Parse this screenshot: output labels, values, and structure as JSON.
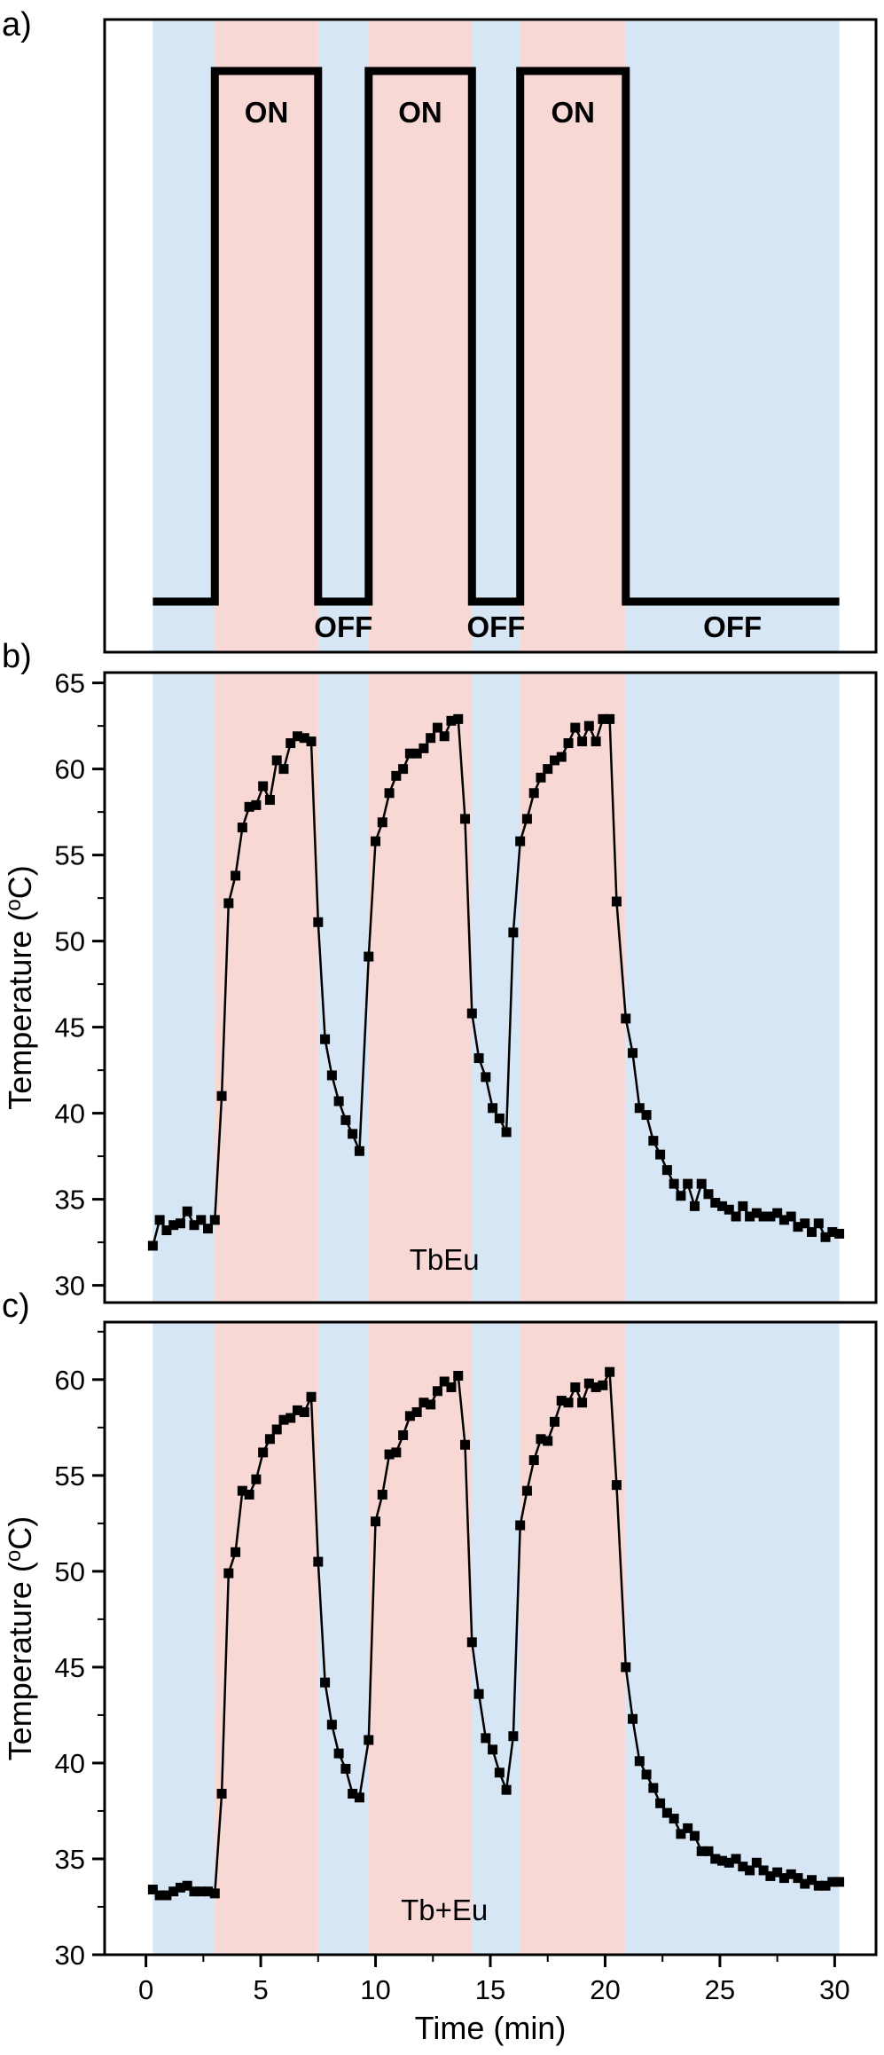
{
  "panels": [
    {
      "letter": "a)"
    },
    {
      "letter": "b)"
    },
    {
      "letter": "c)"
    }
  ],
  "colors": {
    "off_band": "#d6e6f4",
    "on_band": "#f8d8d5",
    "line": "#000000",
    "frame": "#000000"
  },
  "bands": [
    {
      "state": "off",
      "x0": 0.3,
      "x1": 3.0
    },
    {
      "state": "on",
      "x0": 3.0,
      "x1": 7.5
    },
    {
      "state": "off",
      "x0": 7.5,
      "x1": 9.7
    },
    {
      "state": "on",
      "x0": 9.7,
      "x1": 14.2
    },
    {
      "state": "off",
      "x0": 14.2,
      "x1": 16.3
    },
    {
      "state": "on",
      "x0": 16.3,
      "x1": 20.9
    },
    {
      "state": "off",
      "x0": 20.9,
      "x1": 30.2
    }
  ],
  "signal": {
    "path_x": [
      0.3,
      3.0,
      3.0,
      7.5,
      7.5,
      9.7,
      9.7,
      14.2,
      14.2,
      16.3,
      16.3,
      20.9,
      20.9,
      30.2
    ],
    "path_state": [
      0,
      0,
      1,
      1,
      0,
      0,
      1,
      1,
      0,
      0,
      1,
      1,
      0,
      0
    ],
    "labels": [
      {
        "text": "ON",
        "x": 5.25,
        "level": "on"
      },
      {
        "text": "ON",
        "x": 11.95,
        "level": "on"
      },
      {
        "text": "ON",
        "x": 18.6,
        "level": "on"
      },
      {
        "text": "OFF",
        "x": 8.6,
        "level": "off"
      },
      {
        "text": "OFF",
        "x": 15.25,
        "level": "off"
      },
      {
        "text": "OFF",
        "x": 25.55,
        "level": "off"
      }
    ]
  },
  "chart_data": [
    {
      "type": "line",
      "panel": "b)",
      "xlim": [
        -1.8,
        31.8
      ],
      "ylim": [
        29,
        65.6
      ],
      "yticks": [
        30,
        35,
        40,
        45,
        50,
        55,
        60,
        65
      ],
      "ylabel": "Temperature (°C)",
      "ylabel_parts": {
        "before": "Temperature (",
        "sup": "o",
        "after": "C)"
      },
      "annotation": "TbEu",
      "marker": "square",
      "x": [
        0.3,
        0.6,
        0.9,
        1.2,
        1.5,
        1.8,
        2.1,
        2.4,
        2.7,
        3.0,
        3.3,
        3.6,
        3.9,
        4.2,
        4.5,
        4.8,
        5.1,
        5.4,
        5.7,
        6.0,
        6.3,
        6.6,
        6.9,
        7.2,
        7.5,
        7.8,
        8.1,
        8.4,
        8.7,
        9.0,
        9.3,
        9.7,
        10.0,
        10.3,
        10.6,
        10.9,
        11.2,
        11.5,
        11.8,
        12.1,
        12.4,
        12.7,
        13.0,
        13.3,
        13.6,
        13.9,
        14.2,
        14.5,
        14.8,
        15.1,
        15.4,
        15.7,
        16.0,
        16.3,
        16.6,
        16.9,
        17.2,
        17.5,
        17.8,
        18.1,
        18.4,
        18.7,
        19.0,
        19.3,
        19.6,
        19.9,
        20.2,
        20.5,
        20.9,
        21.2,
        21.5,
        21.8,
        22.1,
        22.4,
        22.7,
        23.0,
        23.3,
        23.6,
        23.9,
        24.2,
        24.5,
        24.8,
        25.1,
        25.4,
        25.7,
        26.0,
        26.3,
        26.6,
        26.9,
        27.2,
        27.5,
        27.8,
        28.1,
        28.4,
        28.7,
        29.0,
        29.3,
        29.6,
        29.9,
        30.2
      ],
      "y": [
        32.3,
        33.8,
        33.2,
        33.5,
        33.6,
        34.3,
        33.5,
        33.8,
        33.3,
        33.8,
        41.0,
        52.2,
        53.8,
        56.6,
        57.8,
        57.9,
        59.0,
        58.2,
        60.5,
        60.0,
        61.5,
        61.9,
        61.8,
        61.6,
        51.1,
        44.3,
        42.2,
        40.7,
        39.6,
        38.8,
        37.8,
        49.1,
        55.8,
        56.9,
        58.6,
        59.6,
        60.0,
        60.9,
        60.9,
        61.2,
        61.8,
        62.4,
        61.9,
        62.8,
        62.9,
        57.1,
        45.8,
        43.2,
        42.1,
        40.3,
        39.7,
        38.9,
        50.5,
        55.8,
        57.1,
        58.6,
        59.5,
        60.0,
        60.5,
        60.7,
        61.5,
        62.4,
        61.6,
        62.5,
        61.6,
        62.9,
        62.9,
        52.3,
        45.5,
        43.5,
        40.3,
        39.9,
        38.4,
        37.6,
        36.7,
        35.9,
        35.2,
        35.9,
        34.6,
        35.9,
        35.3,
        34.8,
        34.6,
        34.4,
        34.0,
        34.6,
        34.0,
        34.2,
        34.0,
        34.0,
        34.2,
        33.8,
        34.0,
        33.4,
        33.6,
        33.1,
        33.6,
        32.8,
        33.1,
        33.0
      ]
    },
    {
      "type": "line",
      "panel": "c)",
      "xlim": [
        -1.8,
        31.8
      ],
      "ylim": [
        30,
        63
      ],
      "yticks": [
        30,
        35,
        40,
        45,
        50,
        55,
        60
      ],
      "xticks": [
        0,
        5,
        10,
        15,
        20,
        25,
        30
      ],
      "xlabel": "Time (min)",
      "ylabel": "Temperature (°C)",
      "ylabel_parts": {
        "before": "Temperature (",
        "sup": "o",
        "after": "C)"
      },
      "annotation": "Tb+Eu",
      "marker": "square",
      "x": [
        0.3,
        0.6,
        0.9,
        1.2,
        1.5,
        1.8,
        2.1,
        2.4,
        2.7,
        3.0,
        3.3,
        3.6,
        3.9,
        4.2,
        4.5,
        4.8,
        5.1,
        5.4,
        5.7,
        6.0,
        6.3,
        6.6,
        6.9,
        7.2,
        7.5,
        7.8,
        8.1,
        8.4,
        8.7,
        9.0,
        9.3,
        9.7,
        10.0,
        10.3,
        10.6,
        10.9,
        11.2,
        11.5,
        11.8,
        12.1,
        12.4,
        12.7,
        13.0,
        13.3,
        13.6,
        13.9,
        14.2,
        14.5,
        14.8,
        15.1,
        15.4,
        15.7,
        16.0,
        16.3,
        16.6,
        16.9,
        17.2,
        17.5,
        17.8,
        18.1,
        18.4,
        18.7,
        19.0,
        19.3,
        19.6,
        19.9,
        20.2,
        20.5,
        20.9,
        21.2,
        21.5,
        21.8,
        22.1,
        22.4,
        22.7,
        23.0,
        23.3,
        23.6,
        23.9,
        24.2,
        24.5,
        24.8,
        25.1,
        25.4,
        25.7,
        26.0,
        26.3,
        26.6,
        26.9,
        27.2,
        27.5,
        27.8,
        28.1,
        28.4,
        28.7,
        29.0,
        29.3,
        29.6,
        29.9,
        30.2
      ],
      "y": [
        33.4,
        33.1,
        33.1,
        33.3,
        33.5,
        33.6,
        33.3,
        33.3,
        33.3,
        33.2,
        38.4,
        49.9,
        51.0,
        54.2,
        54.0,
        54.8,
        56.2,
        56.9,
        57.4,
        57.9,
        58.0,
        58.4,
        58.3,
        59.1,
        50.5,
        44.2,
        42.0,
        40.5,
        39.7,
        38.4,
        38.2,
        41.2,
        52.6,
        54.0,
        56.1,
        56.2,
        57.1,
        58.1,
        58.3,
        58.8,
        58.7,
        59.4,
        59.9,
        59.6,
        60.2,
        56.6,
        46.3,
        43.6,
        41.3,
        40.7,
        39.5,
        38.6,
        41.4,
        52.4,
        54.2,
        55.8,
        56.9,
        56.8,
        57.8,
        58.9,
        58.8,
        59.6,
        58.8,
        59.8,
        59.6,
        59.7,
        60.4,
        54.5,
        45.0,
        42.3,
        40.1,
        39.4,
        38.7,
        37.9,
        37.4,
        37.1,
        36.3,
        36.6,
        36.2,
        35.4,
        35.4,
        35.0,
        34.9,
        34.8,
        35.0,
        34.6,
        34.4,
        34.8,
        34.4,
        34.1,
        34.3,
        34.0,
        34.2,
        34.0,
        33.7,
        33.9,
        33.6,
        33.6,
        33.8,
        33.8
      ]
    }
  ]
}
